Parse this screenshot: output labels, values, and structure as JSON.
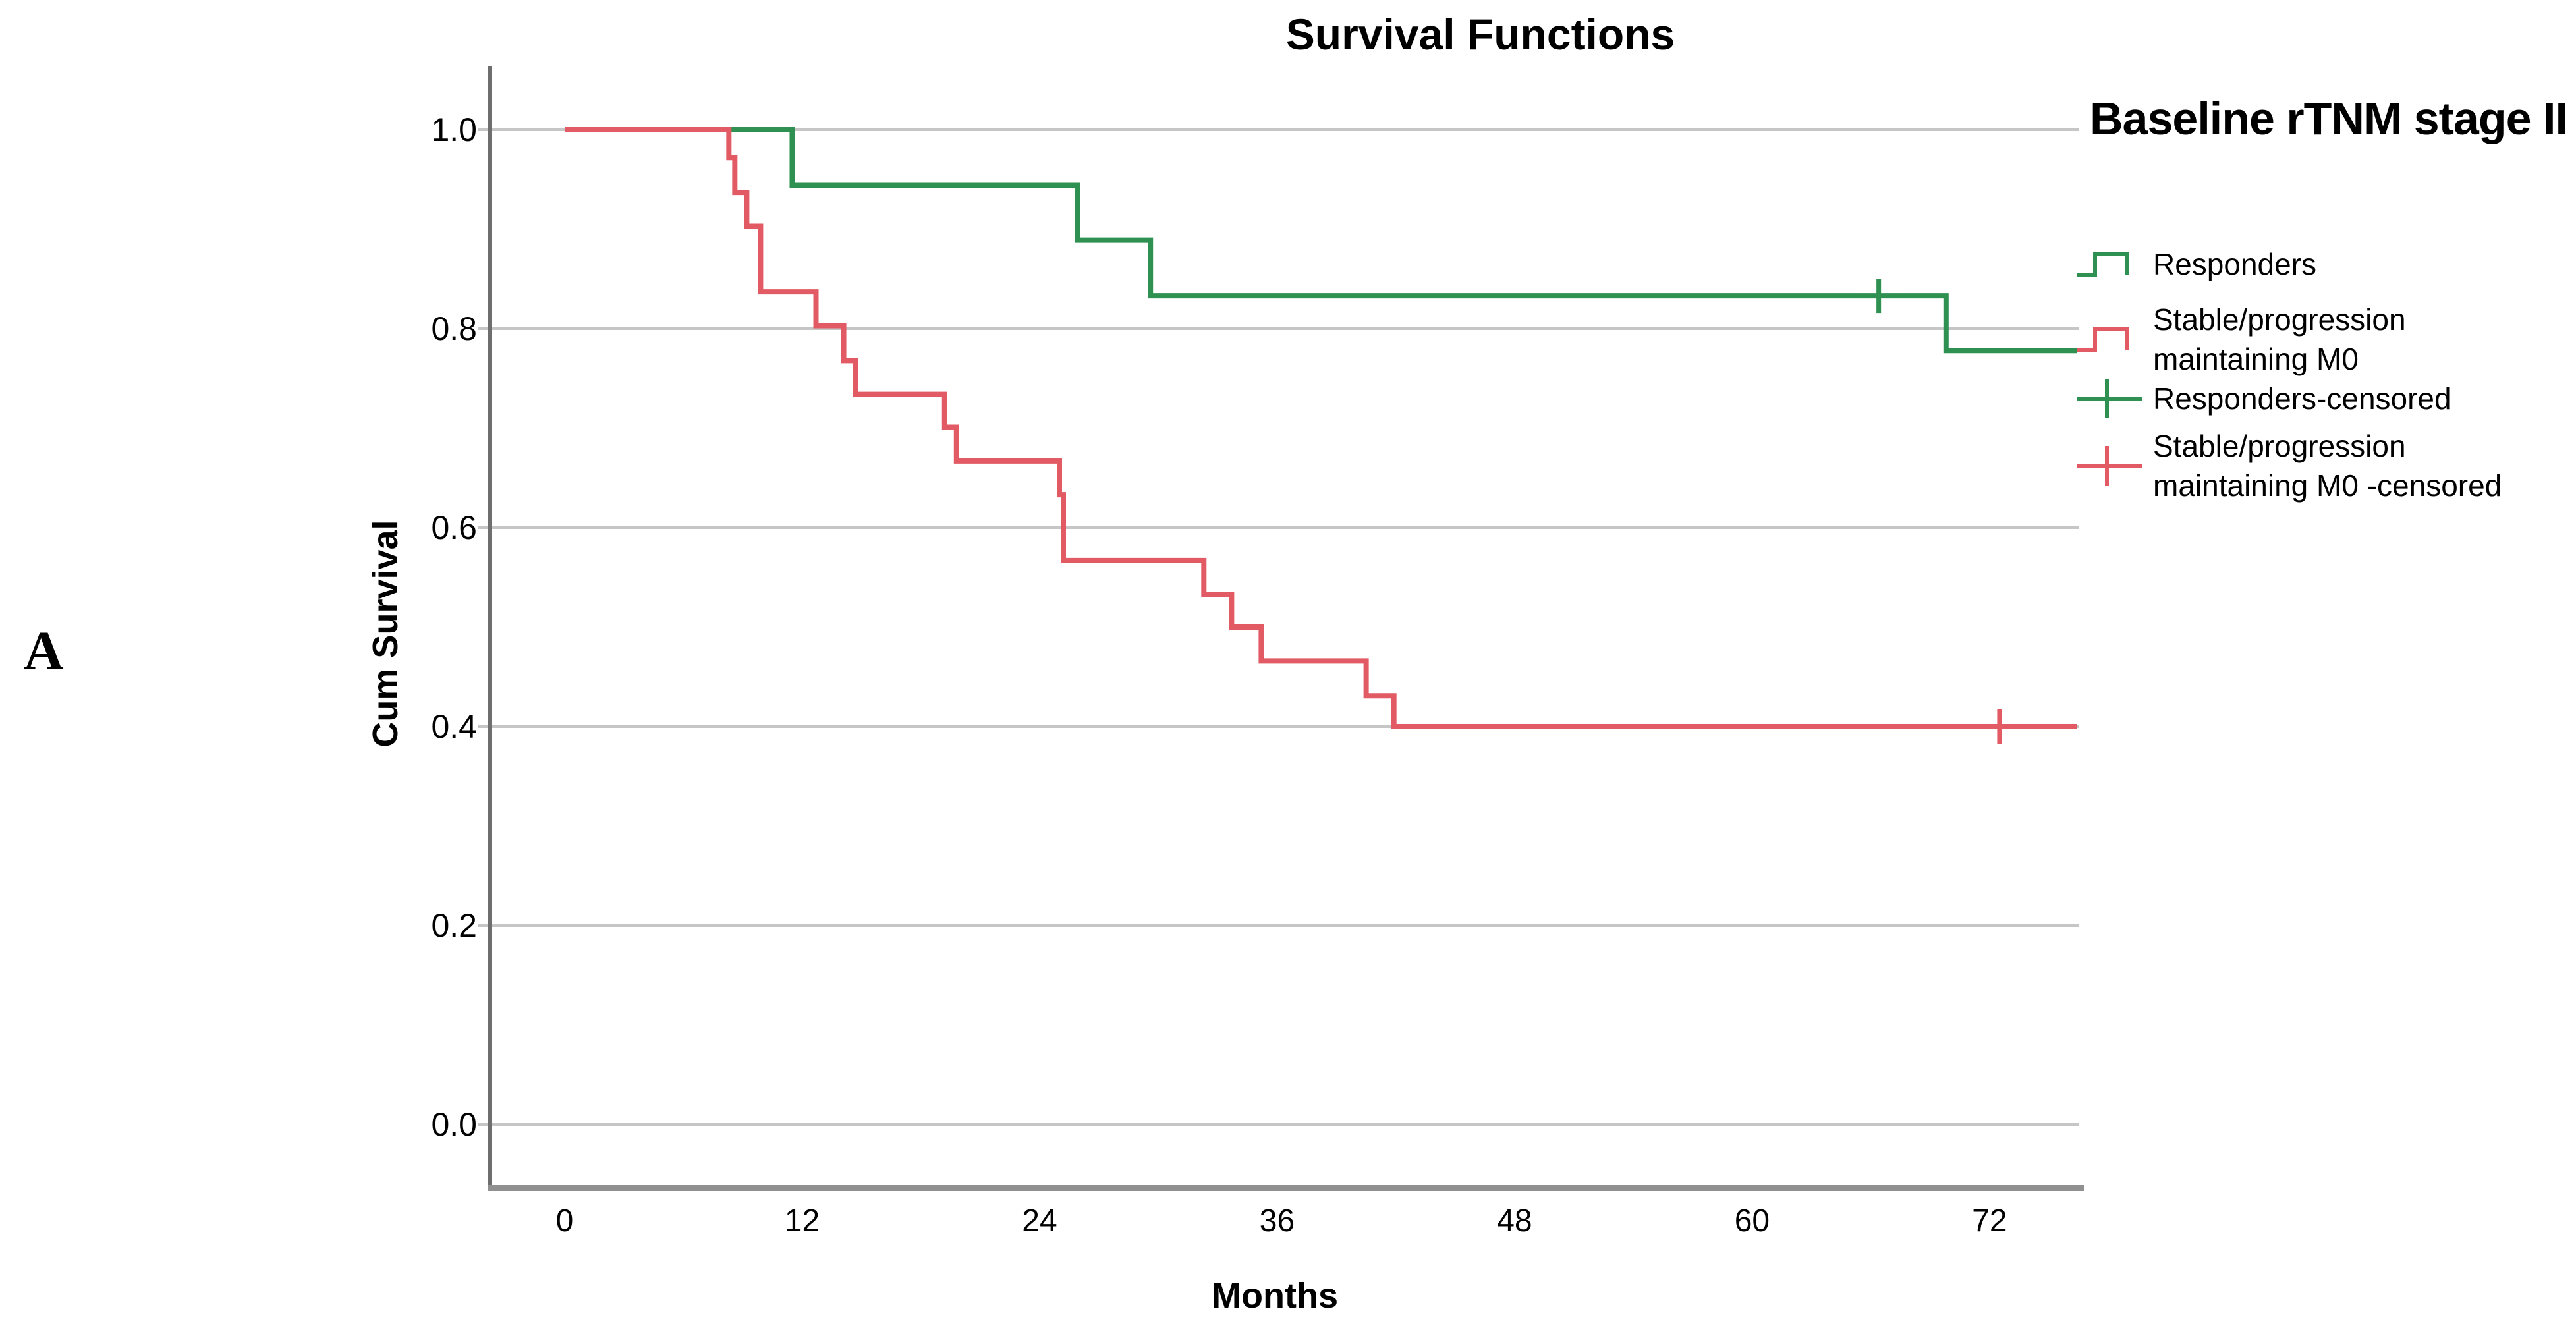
{
  "panel_label": "A",
  "title": "Survival Functions",
  "axes": {
    "x_label": "Months",
    "y_label": "Cum Survival",
    "x_ticks": [
      "0",
      "12",
      "24",
      "36",
      "48",
      "60",
      "72"
    ],
    "y_ticks": [
      "1.0",
      "0.8",
      "0.6",
      "0.4",
      "0.2",
      "0.0"
    ]
  },
  "legend": {
    "title": "Baseline rTNM stage II",
    "items": [
      {
        "label": "Responders",
        "marker": "step",
        "color": "#2E9151"
      },
      {
        "label": "Stable/progression\nmaintaining M0",
        "marker": "step",
        "color": "#E25A64"
      },
      {
        "label": "Responders-censored",
        "marker": "plus",
        "color": "#2E9151"
      },
      {
        "label": "Stable/progression\nmaintaining M0 -censored",
        "marker": "plus",
        "color": "#E25A64"
      }
    ]
  },
  "colors": {
    "responders": "#2E9151",
    "stable_progression": "#E25A64",
    "gridline": "#C6C6C6",
    "y_axis_line": "#6E6E6E",
    "x_axis_line": "#909090",
    "text": "#000000"
  },
  "chart_data": {
    "type": "line",
    "subtype": "kaplan-meier-step",
    "title": "Survival Functions",
    "xlabel": "Months",
    "ylabel": "Cum Survival",
    "xlim": [
      0,
      76.4
    ],
    "ylim": [
      0.0,
      1.0
    ],
    "x_tick_values": [
      0,
      12,
      24,
      36,
      48,
      60,
      72
    ],
    "y_tick_values": [
      1.0,
      0.8,
      0.6,
      0.4,
      0.2,
      0.0
    ],
    "grid": "horizontal",
    "legend_position": "right",
    "series": [
      {
        "name": "Responders",
        "color": "#2E9151",
        "start": [
          0,
          1.0
        ],
        "events": [
          [
            11.5,
            0.944
          ],
          [
            25.9,
            0.889
          ],
          [
            29.6,
            0.833
          ],
          [
            69.8,
            0.778
          ]
        ],
        "end_time": 76.4,
        "censored": [
          [
            66.4,
            0.833
          ]
        ]
      },
      {
        "name": "Stable/progression maintaining M0",
        "color": "#E25A64",
        "start": [
          0,
          1.0
        ],
        "events": [
          [
            8.3,
            0.972
          ],
          [
            8.6,
            0.937
          ],
          [
            9.2,
            0.903
          ],
          [
            9.9,
            0.837
          ],
          [
            12.7,
            0.803
          ],
          [
            14.1,
            0.768
          ],
          [
            14.7,
            0.734
          ],
          [
            19.2,
            0.701
          ],
          [
            19.8,
            0.667
          ],
          [
            25.0,
            0.633
          ],
          [
            25.2,
            0.567
          ],
          [
            32.3,
            0.533
          ],
          [
            33.7,
            0.5
          ],
          [
            35.2,
            0.466
          ],
          [
            40.5,
            0.431
          ],
          [
            41.9,
            0.4
          ]
        ],
        "end_time": 76.4,
        "censored": [
          [
            72.5,
            0.4
          ]
        ]
      }
    ]
  }
}
